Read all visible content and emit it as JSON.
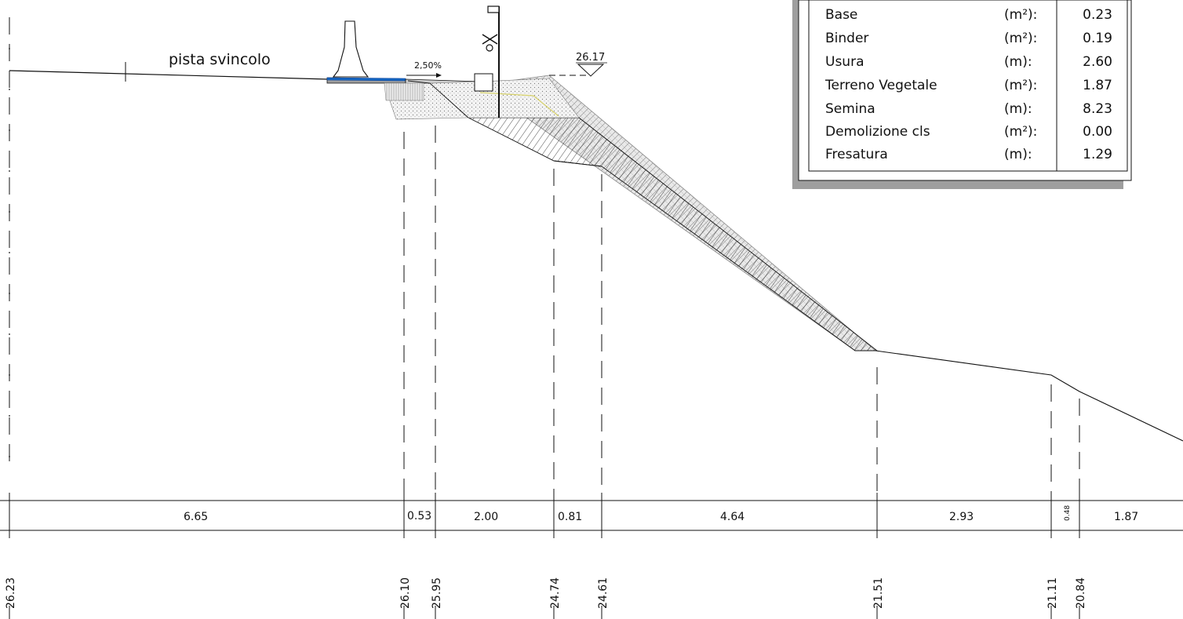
{
  "labels": {
    "road": "pista svincolo",
    "slope": "2,50%",
    "level": "26.17"
  },
  "quantities": [
    {
      "name": "Base",
      "unit": "(m²):",
      "value": "0.23"
    },
    {
      "name": "Binder",
      "unit": "(m²):",
      "value": "0.19"
    },
    {
      "name": "Usura",
      "unit": "(m):",
      "value": "2.60"
    },
    {
      "name": "Terreno Vegetale",
      "unit": "(m²):",
      "value": "1.87"
    },
    {
      "name": "Semina",
      "unit": "(m):",
      "value": "8.23"
    },
    {
      "name": "Demolizione cls",
      "unit": "(m²):",
      "value": "0.00"
    },
    {
      "name": "Fresatura",
      "unit": "(m):",
      "value": "1.29"
    }
  ],
  "distances": [
    "6.65",
    "0.53",
    "2.00",
    "0.81",
    "4.64",
    "2.93",
    "0.48",
    "1.87"
  ],
  "elevations": [
    "26.23",
    "26.10",
    "25.95",
    "24.74",
    "24.61",
    "21.51",
    "21.11",
    "20.84"
  ],
  "colors": {
    "line": "#111111",
    "asphalt": "#1565c0",
    "fill_gray": "#bdbdbd",
    "shadow": "#9e9e9e",
    "topsoil": "#d9d9d9",
    "yellow": "#d7d26a"
  }
}
